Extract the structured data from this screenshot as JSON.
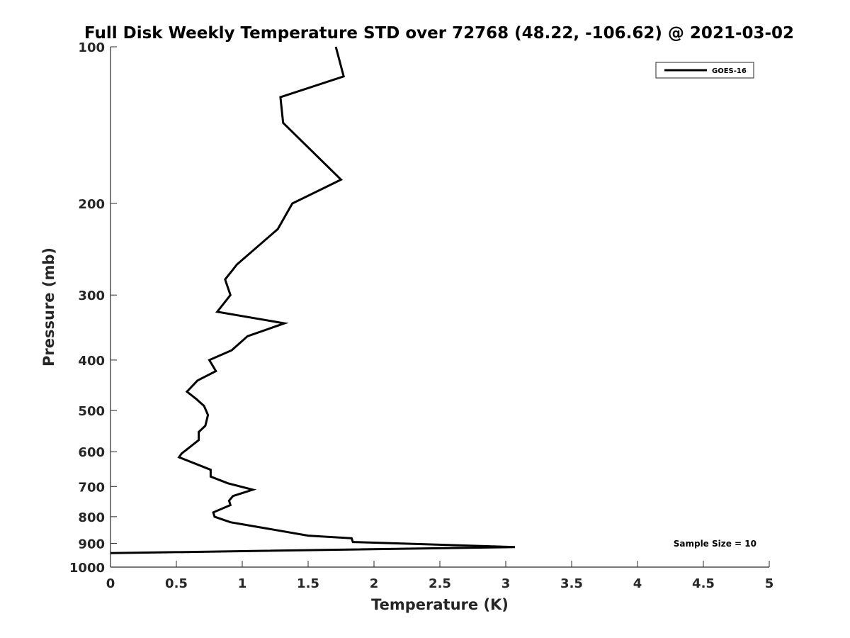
{
  "chart_data": {
    "type": "line",
    "title": "Full Disk Weekly Temperature STD over 72768 (48.22, -106.62) @ 2021-03-02",
    "xlabel": "Temperature (K)",
    "ylabel": "Pressure (mb)",
    "xlim": [
      0,
      5
    ],
    "ylim": [
      100,
      1000
    ],
    "y_scale": "log",
    "y_reversed": true,
    "x_ticks": [
      0,
      0.5,
      1,
      1.5,
      2,
      2.5,
      3,
      3.5,
      4,
      4.5,
      5
    ],
    "x_tick_labels": [
      "0",
      "0.5",
      "1",
      "1.5",
      "2",
      "2.5",
      "3",
      "3.5",
      "4",
      "4.5",
      "5"
    ],
    "y_ticks": [
      100,
      200,
      300,
      400,
      500,
      600,
      700,
      800,
      900,
      1000
    ],
    "y_tick_labels": [
      "100",
      "200",
      "300",
      "400",
      "500",
      "600",
      "700",
      "800",
      "900",
      "1000"
    ],
    "grid": false,
    "legend_position": "top-right",
    "series": [
      {
        "name": "GOES-16",
        "color": "#000000",
        "x": [
          1.71,
          1.77,
          1.29,
          1.31,
          1.75,
          1.38,
          1.27,
          0.96,
          0.87,
          0.91,
          0.81,
          1.32,
          1.04,
          0.92,
          0.75,
          0.8,
          0.66,
          0.58,
          0.65,
          0.71,
          0.74,
          0.72,
          0.67,
          0.67,
          0.54,
          0.52,
          0.76,
          0.76,
          0.89,
          1.08,
          0.93,
          0.9,
          0.91,
          0.78,
          0.79,
          0.91,
          1.27,
          1.5,
          1.83,
          1.84,
          3.07,
          0.0
        ],
        "y": [
          100,
          114,
          125,
          140,
          180,
          200,
          224,
          262,
          280,
          300,
          323,
          340,
          360,
          383,
          400,
          420,
          438,
          460,
          475,
          490,
          510,
          535,
          550,
          570,
          605,
          615,
          650,
          670,
          690,
          710,
          730,
          745,
          760,
          785,
          800,
          820,
          850,
          870,
          880,
          895,
          915,
          940
        ]
      }
    ],
    "annotations": [
      {
        "text": "Sample Size = 10",
        "position": "bottom-right"
      }
    ]
  }
}
